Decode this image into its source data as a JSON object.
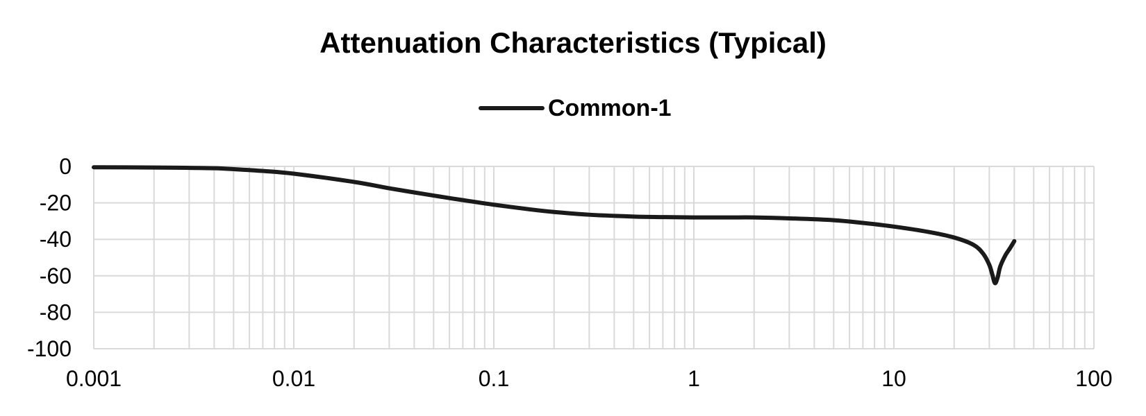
{
  "chart_data": {
    "type": "line",
    "title": "Attenuation Characteristics (Typical)",
    "xlabel": "",
    "ylabel": "",
    "x_scale": "log",
    "xlim": [
      0.001,
      100
    ],
    "ylim": [
      -100,
      0
    ],
    "x_ticks": [
      0.001,
      0.01,
      0.1,
      1,
      10,
      100
    ],
    "x_tick_labels": [
      "0.001",
      "0.01",
      "0.1",
      "1",
      "10",
      "100"
    ],
    "y_ticks": [
      0,
      -20,
      -40,
      -60,
      -80,
      -100
    ],
    "y_tick_labels": [
      "0",
      "-20",
      "-40",
      "-60",
      "-80",
      "-100"
    ],
    "grid": true,
    "legend_position": "top-center",
    "colors": {
      "series": "#1a1a1a",
      "grid": "#d9d9d9",
      "axis": "#d9d9d9"
    },
    "series": [
      {
        "name": "Common-1",
        "x": [
          0.001,
          0.002,
          0.003,
          0.004,
          0.005,
          0.007,
          0.01,
          0.02,
          0.03,
          0.05,
          0.07,
          0.1,
          0.15,
          0.2,
          0.3,
          0.5,
          0.7,
          1,
          1.5,
          2,
          3,
          5,
          7,
          10,
          15,
          20,
          25,
          28,
          30,
          31,
          32,
          33,
          34,
          36,
          38,
          40
        ],
        "y": [
          -0.5,
          -0.6,
          -0.8,
          -1,
          -1.5,
          -2.5,
          -4,
          -8.5,
          -12,
          -16,
          -18.5,
          -21,
          -23.5,
          -25,
          -26.5,
          -27.5,
          -27.8,
          -28,
          -28,
          -28,
          -28.5,
          -29.5,
          -31,
          -33,
          -36,
          -39,
          -43,
          -48,
          -54,
          -59,
          -64,
          -61,
          -55,
          -49,
          -45,
          -41
        ]
      }
    ]
  }
}
